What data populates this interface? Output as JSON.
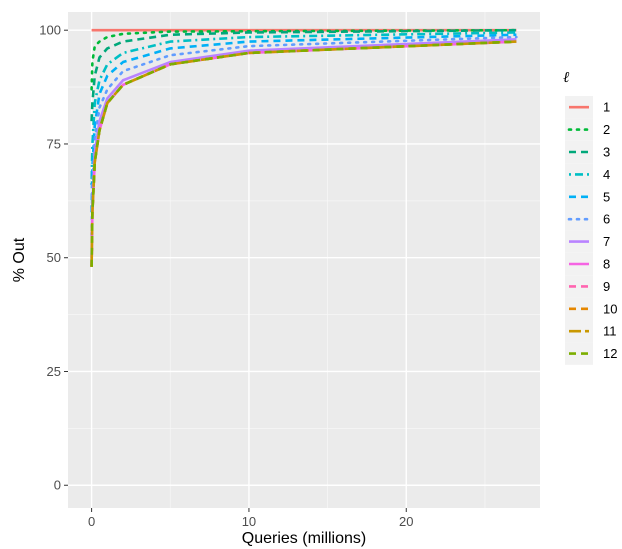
{
  "chart_data": {
    "type": "line",
    "title": "",
    "xlabel": "Queries (millions)",
    "ylabel": "% Out",
    "xlim": [
      -1.5,
      28.5
    ],
    "ylim": [
      -5,
      104
    ],
    "xticks": [
      0,
      10,
      20
    ],
    "xtick_labels": [
      "0",
      "10",
      "20"
    ],
    "yticks": [
      0,
      25,
      50,
      75,
      100
    ],
    "ytick_labels": [
      "0",
      "25",
      "50",
      "75",
      "100"
    ],
    "grid": true,
    "legend_title": "ℓ",
    "legend_position": "right",
    "series": [
      {
        "name": "1",
        "color": "#F8766D",
        "dash": "solid",
        "x": [
          0,
          0.05,
          0.5,
          27
        ],
        "y": [
          100,
          100,
          100,
          100
        ]
      },
      {
        "name": "2",
        "color": "#00BA38",
        "dash": "dotted",
        "x": [
          0,
          0.05,
          0.2,
          0.5,
          1,
          2,
          5,
          27
        ],
        "y": [
          87,
          93,
          96.5,
          97.5,
          98.5,
          99.2,
          99.7,
          100
        ]
      },
      {
        "name": "3",
        "color": "#00A87A",
        "dash": "dashed",
        "x": [
          0,
          0.05,
          0.2,
          0.5,
          1,
          2,
          5,
          10,
          27
        ],
        "y": [
          80,
          84,
          90,
          94,
          96,
          97.5,
          99,
          99.5,
          100
        ]
      },
      {
        "name": "4",
        "color": "#00BFC4",
        "dash": "dotdash",
        "x": [
          0,
          0.05,
          0.2,
          0.5,
          1,
          2,
          5,
          10,
          27
        ],
        "y": [
          66,
          75,
          84,
          89,
          92.5,
          95,
          97.5,
          98.5,
          99.5
        ]
      },
      {
        "name": "5",
        "color": "#00B0F6",
        "dash": "dashed",
        "x": [
          0,
          0.05,
          0.2,
          0.5,
          1,
          2,
          5,
          10,
          27
        ],
        "y": [
          60,
          70,
          79,
          86,
          90,
          93,
          96,
          97.5,
          99
        ]
      },
      {
        "name": "6",
        "color": "#619CFF",
        "dash": "dotted",
        "x": [
          0,
          0.05,
          0.2,
          0.5,
          1,
          2,
          5,
          10,
          27
        ],
        "y": [
          55,
          66,
          76,
          83,
          87,
          91,
          94.5,
          96.5,
          98.5
        ]
      },
      {
        "name": "7",
        "color": "#B983FF",
        "dash": "solid",
        "x": [
          0,
          0.05,
          0.2,
          0.5,
          1,
          2,
          5,
          10,
          27
        ],
        "y": [
          50,
          62,
          73,
          80,
          85,
          89,
          93,
          95.5,
          98
        ]
      },
      {
        "name": "8",
        "color": "#F564E3",
        "dash": "solid",
        "x": [
          0,
          0.05,
          0.2,
          0.5,
          1,
          2,
          5,
          10,
          27
        ],
        "y": [
          48,
          60,
          71,
          78,
          84,
          88,
          92.5,
          95,
          97.5
        ]
      },
      {
        "name": "9",
        "color": "#FF64B0",
        "dash": "dashed",
        "x": [
          0,
          0.05,
          0.2,
          0.5,
          1,
          2,
          5,
          10,
          27
        ],
        "y": [
          48,
          60,
          71,
          78,
          84,
          88,
          92.5,
          95,
          97.5
        ]
      },
      {
        "name": "10",
        "color": "#E58700",
        "dash": "dashed",
        "x": [
          0,
          0.05,
          0.2,
          0.5,
          1,
          2,
          5,
          10,
          27
        ],
        "y": [
          48,
          60,
          71,
          78,
          84,
          88,
          92.5,
          95,
          97.5
        ]
      },
      {
        "name": "11",
        "color": "#C99800",
        "dash": "longdash",
        "x": [
          0,
          0.05,
          0.2,
          0.5,
          1,
          2,
          5,
          10,
          27
        ],
        "y": [
          48,
          60,
          71,
          78,
          84,
          88,
          92.5,
          95,
          97.5
        ]
      },
      {
        "name": "12",
        "color": "#7CAE00",
        "dash": "dashed",
        "x": [
          0,
          0.05,
          0.2,
          0.5,
          1,
          2,
          5,
          10,
          27
        ],
        "y": [
          48,
          60,
          71,
          78,
          84,
          88,
          92.5,
          95,
          97.5
        ]
      }
    ]
  }
}
